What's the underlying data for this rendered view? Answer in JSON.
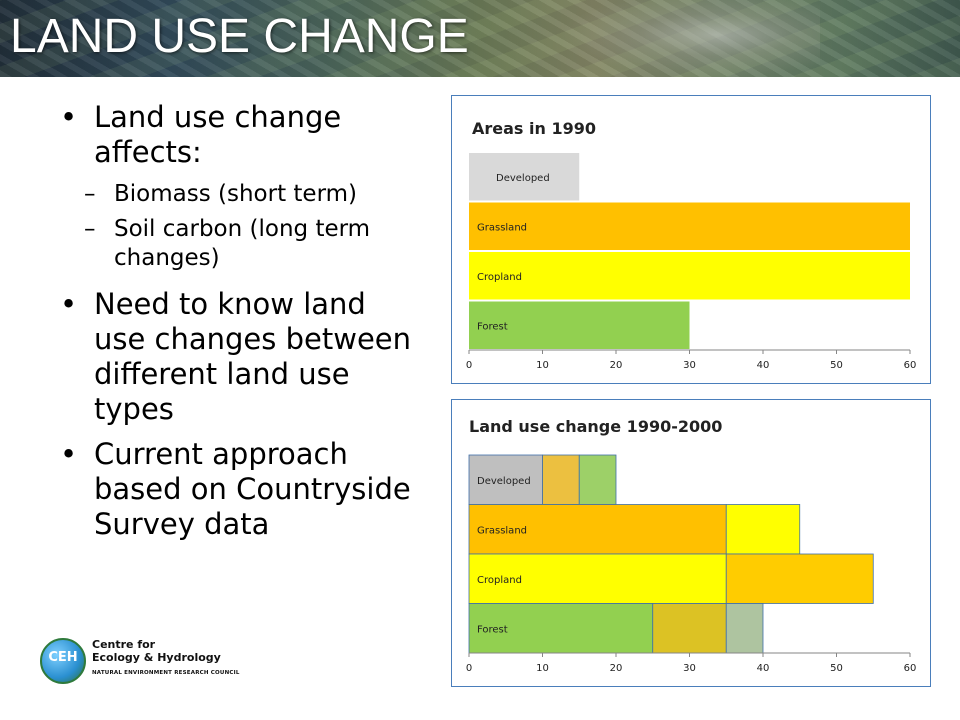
{
  "slide": {
    "title": "LAND USE CHANGE",
    "bullets": [
      {
        "text": "Land use change affects:",
        "line1": "Land use change",
        "line2": "affects:"
      },
      {
        "text": "Need to know land use changes between different land use types"
      },
      {
        "text": "Current approach based on Countryside Survey data"
      }
    ],
    "sub_bullets": [
      {
        "line1": "Biomass (short term)"
      },
      {
        "line1": "Soil carbon (long term",
        "line2": "changes)"
      }
    ],
    "bullet2_lines": [
      "Need to know land",
      "use changes between",
      "different land use",
      "types"
    ],
    "bullet3_lines": [
      "Current approach",
      "based on Countryside",
      "Survey data"
    ],
    "bullet_marker": "•",
    "sub_marker": "–"
  },
  "logo": {
    "abbr": "CEH",
    "line1": "Centre for",
    "line2": "Ecology & Hydrology",
    "line3": "NATURAL ENVIRONMENT RESEARCH COUNCIL"
  },
  "colors": {
    "developed": "#d9d9d9",
    "grassland": "#ffc000",
    "cropland": "#ffff00",
    "forest": "#92d050",
    "panel_border": "#4a7ebb"
  },
  "chart_data": [
    {
      "type": "bar",
      "orientation": "horizontal",
      "stacked": false,
      "title": "Areas in 1990",
      "categories": [
        "Developed",
        "Grassland",
        "Cropland",
        "Forest"
      ],
      "values": [
        15,
        60,
        60,
        30
      ],
      "xlim": [
        0,
        60
      ],
      "xticks": [
        0,
        10,
        20,
        30,
        40,
        50,
        60
      ],
      "grid": false,
      "legend": "none"
    },
    {
      "type": "bar",
      "orientation": "horizontal",
      "stacked": true,
      "title": "Land use change 1990-2000",
      "categories": [
        "Developed",
        "Grassland",
        "Cropland",
        "Forest"
      ],
      "segments": [
        [
          {
            "value": 10,
            "color": "#bfbfbf"
          },
          {
            "value": 5,
            "color": "#ecc040"
          },
          {
            "value": 5,
            "color": "#9dd068"
          }
        ],
        [
          {
            "value": 35,
            "color": "#ffc000"
          },
          {
            "value": 10,
            "color": "#ffff00"
          }
        ],
        [
          {
            "value": 35,
            "color": "#ffff00"
          },
          {
            "value": 20,
            "color": "#ffcc00"
          }
        ],
        [
          {
            "value": 25,
            "color": "#92d050"
          },
          {
            "value": 10,
            "color": "#dcc224"
          },
          {
            "value": 5,
            "color": "#aec4a0"
          }
        ]
      ],
      "xlim": [
        0,
        60
      ],
      "xticks": [
        0,
        10,
        20,
        30,
        40,
        50,
        60
      ],
      "grid": false,
      "legend": "none"
    }
  ]
}
